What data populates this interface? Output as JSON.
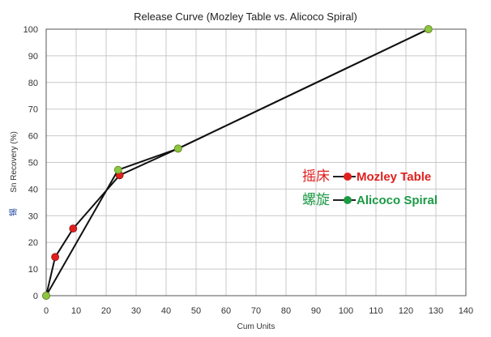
{
  "chart_data": {
    "type": "line",
    "title": "Release Curve (Mozley Table vs. Alicoco Spiral)",
    "xlabel": "Cum Units",
    "ylabel": "Sn Recovery (%)",
    "ylabel_extra": "锡",
    "xlim": [
      0,
      140
    ],
    "ylim": [
      0,
      100
    ],
    "xticks": [
      0,
      10,
      20,
      30,
      40,
      50,
      60,
      70,
      80,
      90,
      100,
      110,
      120,
      130,
      140
    ],
    "yticks": [
      0,
      10,
      20,
      30,
      40,
      50,
      60,
      70,
      80,
      90,
      100
    ],
    "grid": true,
    "legend_position": "right-middle",
    "series": [
      {
        "name": "Mozley Table",
        "legend_prefix": "摇床",
        "color": "#e0201e",
        "legend_color": "#e0201e",
        "x": [
          0,
          3,
          9,
          24.5,
          44,
          127.5
        ],
        "y": [
          0,
          14.5,
          25.2,
          45.2,
          55.2,
          100
        ]
      },
      {
        "name": "Alicoco Spiral",
        "legend_prefix": "螺旋",
        "color": "#8dc63f",
        "legend_color": "#1b9a45",
        "x": [
          0,
          24,
          44,
          127.5
        ],
        "y": [
          0,
          47.2,
          55.2,
          100
        ]
      }
    ]
  }
}
